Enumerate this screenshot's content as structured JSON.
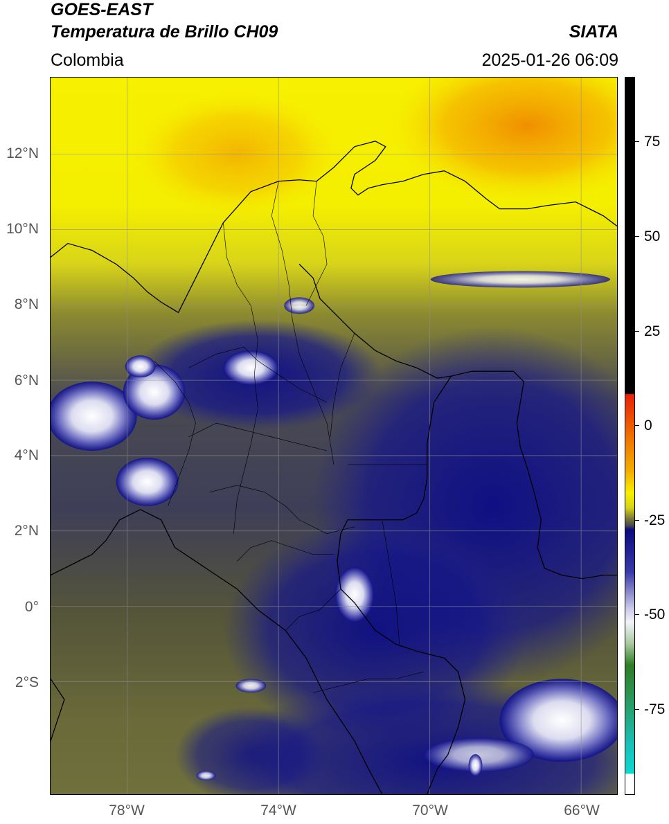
{
  "header": {
    "satellite": "GOES-EAST",
    "product": "Temperatura de Brillo CH09",
    "agency": "SIATA",
    "region": "Colombia",
    "datetime": "2025-01-26 06:09"
  },
  "map": {
    "lat_ticks": [
      "12°N",
      "10°N",
      "8°N",
      "6°N",
      "4°N",
      "2°N",
      "0°",
      "2°S"
    ],
    "lon_ticks": [
      "78°W",
      "74°W",
      "70°W",
      "66°W"
    ],
    "extent": {
      "lon_min": -80,
      "lon_max": -65,
      "lat_min": -5,
      "lat_max": 14
    }
  },
  "colorbar": {
    "ticks": [
      "75",
      "50",
      "25",
      "0",
      "-25",
      "-50",
      "-75"
    ],
    "colors": {
      "black": "#000000",
      "red": "#e8200a",
      "orange": "#f39a00",
      "yellow": "#f7f700",
      "olive": "#7c7c36",
      "gray": "#4a4a50",
      "navy": "#0b0b80",
      "white": "#f4f4f8",
      "green": "#2f7d24",
      "cyan": "#0fd8d0"
    }
  }
}
